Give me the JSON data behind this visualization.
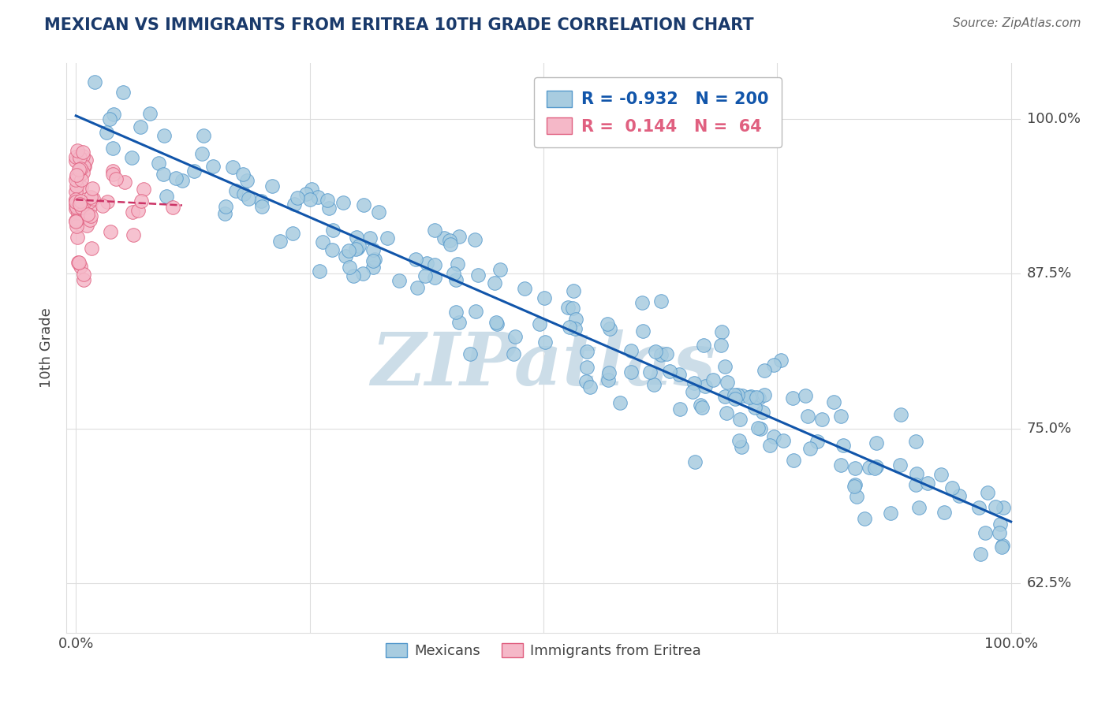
{
  "title": "MEXICAN VS IMMIGRANTS FROM ERITREA 10TH GRADE CORRELATION CHART",
  "source_text": "Source: ZipAtlas.com",
  "ylabel": "10th Grade",
  "watermark": "ZIPatlas",
  "x_ticks": [
    0.0,
    0.25,
    0.5,
    0.75,
    1.0
  ],
  "y_tick_labels": [
    "62.5%",
    "75.0%",
    "87.5%",
    "100.0%"
  ],
  "y_ticks": [
    0.625,
    0.75,
    0.875,
    1.0
  ],
  "xlim": [
    -0.01,
    1.01
  ],
  "ylim": [
    0.585,
    1.045
  ],
  "blue_color": "#a8cce0",
  "pink_color": "#f5b8c8",
  "blue_edge_color": "#5599cc",
  "pink_edge_color": "#e06080",
  "blue_line_color": "#1155aa",
  "pink_line_color": "#cc3366",
  "background_color": "#ffffff",
  "grid_color": "#dddddd",
  "title_color": "#1a3a6b",
  "watermark_color": "#ccdde8",
  "blue_r": -0.932,
  "blue_n": 200,
  "pink_r": 0.144,
  "pink_n": 64,
  "seed_blue": 42,
  "seed_pink": 7
}
